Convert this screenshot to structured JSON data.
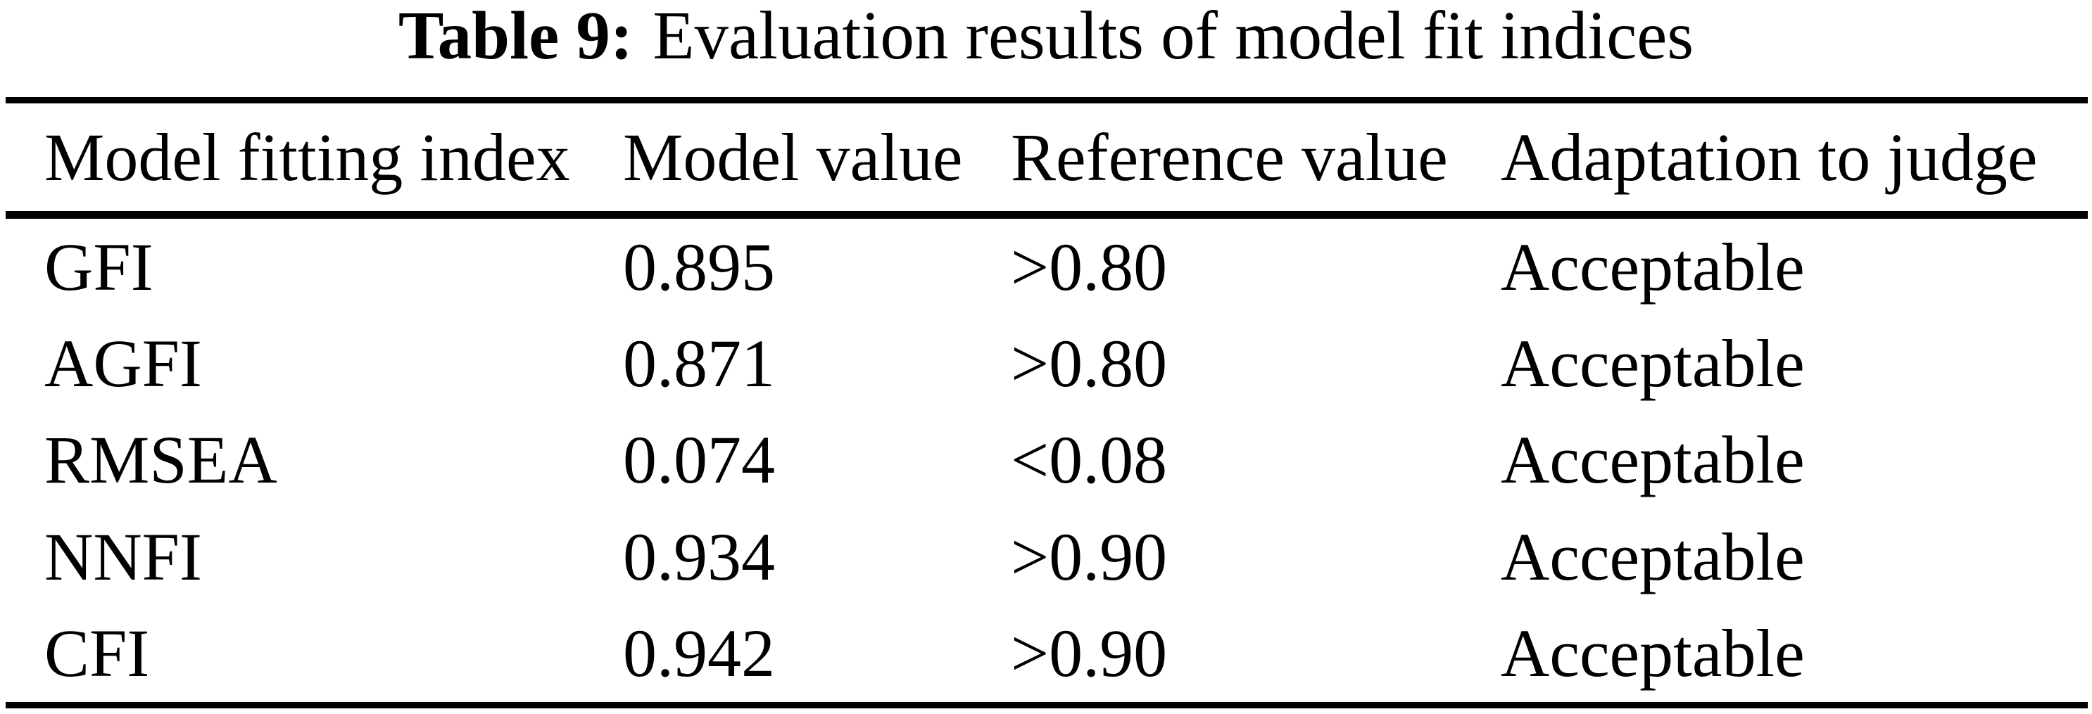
{
  "colors": {
    "background": "#ffffff",
    "text": "#000000",
    "rule": "#000000"
  },
  "caption": {
    "label": "Table 9:",
    "text": "Evaluation results of model fit indices"
  },
  "table": {
    "columns": [
      "Model fitting index",
      "Model value",
      "Reference value",
      "Adaptation to judge"
    ],
    "rows": [
      [
        "GFI",
        "0.895",
        ">0.80",
        "Acceptable"
      ],
      [
        "AGFI",
        "0.871",
        ">0.80",
        "Acceptable"
      ],
      [
        "RMSEA",
        "0.074",
        "<0.08",
        "Acceptable"
      ],
      [
        "NNFI",
        "0.934",
        ">0.90",
        "Acceptable"
      ],
      [
        "CFI",
        "0.942",
        ">0.90",
        "Acceptable"
      ]
    ]
  }
}
